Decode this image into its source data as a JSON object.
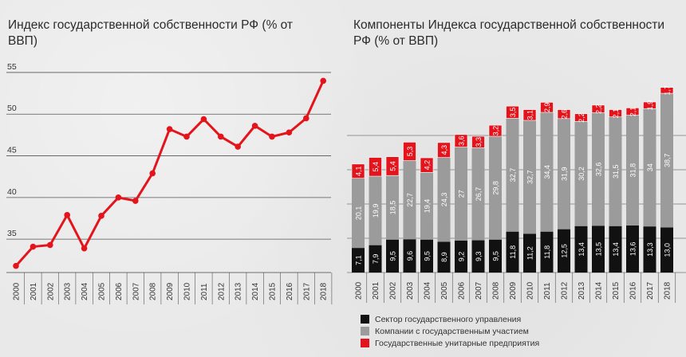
{
  "titles": {
    "left": "Индекс государственной собственности РФ (% от ВВП)",
    "right": "Компоненты Индекса государственной собственности РФ (% от ВВП)"
  },
  "colors": {
    "line": "#e3141b",
    "gov": "#111111",
    "companies": "#9b9b9b",
    "unitary": "#e3141b",
    "grid": "#555555",
    "text": "#333333"
  },
  "legend": [
    {
      "label": "Сектор государственного управления",
      "color": "#111111"
    },
    {
      "label": "Компании с государственным участием",
      "color": "#9b9b9b"
    },
    {
      "label": "Государственные унитарные предприятия",
      "color": "#e3141b"
    }
  ],
  "chart_data": [
    {
      "type": "line",
      "title": "Индекс государственной собственности РФ (% от ВВП)",
      "x": [
        "2000",
        "2001",
        "2002",
        "2003",
        "2004",
        "2005",
        "2006",
        "2007",
        "2008",
        "2009",
        "2010",
        "2011",
        "2012",
        "2013",
        "2014",
        "2015",
        "2016",
        "2017",
        "2018"
      ],
      "series": [
        {
          "values": [
            31.8,
            34.1,
            34.3,
            37.9,
            33.9,
            37.8,
            40.0,
            39.6,
            42.9,
            48.2,
            47.3,
            49.4,
            47.3,
            46.1,
            48.6,
            47.3,
            47.8,
            49.5,
            54.0
          ]
        }
      ],
      "yticks": [
        35,
        40,
        45,
        50,
        55
      ],
      "ylim": [
        31,
        57
      ],
      "grid": true
    },
    {
      "type": "bar",
      "stacked": true,
      "title": "Компоненты Индекса государственной собственности РФ (% от ВВП)",
      "categories": [
        "2000",
        "2001",
        "2002",
        "2003",
        "2004",
        "2005",
        "2006",
        "2007",
        "2008",
        "2009",
        "2010",
        "2011",
        "2012",
        "2013",
        "2014",
        "2015",
        "2016",
        "2017",
        "2018"
      ],
      "series": [
        {
          "name": "Сектор государственного управления",
          "values": [
            7.1,
            7.9,
            9.5,
            9.6,
            9.5,
            8.9,
            9.2,
            9.3,
            9.5,
            11.8,
            11.2,
            11.8,
            12.5,
            13.4,
            13.5,
            13.4,
            13.6,
            13.3,
            13.0
          ],
          "labels": [
            "7,1",
            "7,9",
            "9,5",
            "9,6",
            "9,5",
            "8,9",
            "9,2",
            "9,3",
            "9,5",
            "11,8",
            "11,2",
            "11,8",
            "12,5",
            "13,4",
            "13,5",
            "13,4",
            "13,6",
            "13,3",
            "13,0"
          ]
        },
        {
          "name": "Компании с государственным участием",
          "values": [
            20.1,
            19.9,
            18.5,
            22.7,
            19.4,
            24.3,
            27.0,
            26.7,
            29.8,
            32.7,
            32.7,
            34.4,
            31.9,
            30.2,
            32.6,
            31.5,
            31.8,
            34.0,
            38.7
          ],
          "labels": [
            "20,1",
            "19,9",
            "18,5",
            "22,7",
            "19,4",
            "24,3",
            "27",
            "26,7",
            "29,8",
            "32,7",
            "32,7",
            "34,4",
            "31,9",
            "30,2",
            "32,6",
            "31,5",
            "31,8",
            "34",
            "38,7"
          ]
        },
        {
          "name": "Государственные унитарные предприятия",
          "values": [
            4.1,
            5.4,
            5.4,
            5.3,
            4.2,
            4.3,
            3.6,
            3.3,
            3.2,
            3.5,
            3.1,
            2.9,
            2.6,
            2.2,
            2.2,
            2.1,
            2.1,
            1.9,
            1.7
          ],
          "labels": [
            "4,1",
            "5,4",
            "5,4",
            "5,3",
            "4,2",
            "4,3",
            "3,6",
            "3,3",
            "3,2",
            "3,5",
            "3,1",
            "2,9",
            "2,6",
            "2,2",
            "2,2",
            "2,1",
            "2,1",
            "1,9",
            "1,7"
          ]
        }
      ],
      "grid": true,
      "legend_position": "bottom-left"
    }
  ]
}
